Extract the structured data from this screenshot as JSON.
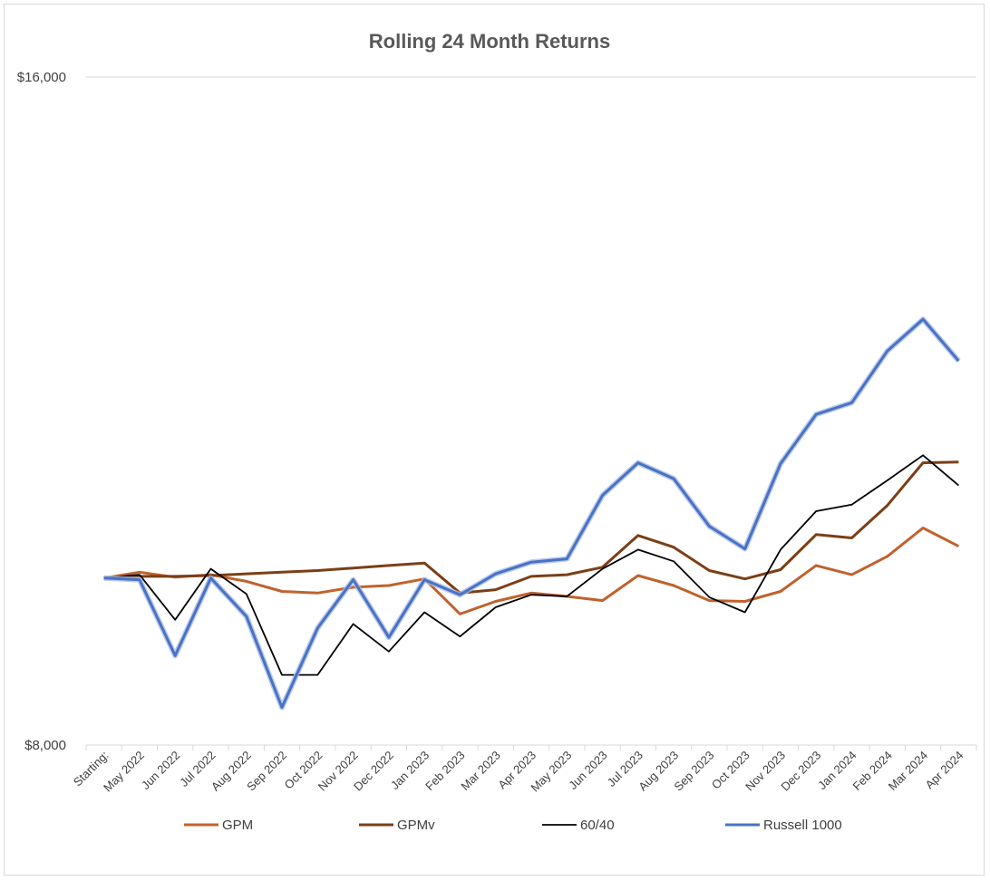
{
  "chart_data": {
    "type": "line",
    "title": "Rolling 24 Month Returns",
    "xlabel": "",
    "ylabel": "",
    "ylim": [
      8000,
      16000
    ],
    "yticks": [
      "$16,000",
      "$8,000"
    ],
    "ytick_values": [
      16000,
      8000
    ],
    "grid": "horizontal",
    "legend_position": "bottom",
    "categories": [
      "Starting:",
      "May 2022",
      "Jun 2022",
      "Jul 2022",
      "Aug 2022",
      "Sep 2022",
      "Oct 2022",
      "Nov 2022",
      "Dec 2022",
      "Jan 2023",
      "Feb 2023",
      "Mar 2023",
      "Apr 2023",
      "May 2023",
      "Jun 2023",
      "Jul 2023",
      "Aug 2023",
      "Sep 2023",
      "Oct 2023",
      "Nov 2023",
      "Dec 2023",
      "Jan 2024",
      "Feb 2024",
      "Mar 2024",
      "Apr 2024"
    ],
    "series": [
      {
        "name": "GPM",
        "color": "#c0622d",
        "width": 3,
        "values": [
          10000,
          10070,
          10010,
          10040,
          9960,
          9840,
          9820,
          9890,
          9910,
          9990,
          9570,
          9720,
          9820,
          9780,
          9730,
          10030,
          9910,
          9730,
          9720,
          9840,
          10150,
          10040,
          10260,
          10600,
          10380
        ]
      },
      {
        "name": "GPMv",
        "color": "#7b3f17",
        "width": 3,
        "values": [
          10000,
          10020,
          10020,
          10030,
          10050,
          10070,
          10090,
          10120,
          10150,
          10180,
          9820,
          9860,
          10020,
          10040,
          10130,
          10510,
          10370,
          10090,
          9990,
          10100,
          10520,
          10480,
          10870,
          11380,
          11390
        ]
      },
      {
        "name": "60/40",
        "color": "#000000",
        "width": 1.8,
        "values": [
          10000,
          10040,
          9500,
          10110,
          9810,
          8840,
          8840,
          9450,
          9120,
          9590,
          9300,
          9650,
          9800,
          9780,
          10110,
          10340,
          10200,
          9770,
          9590,
          10340,
          10800,
          10880,
          11170,
          11470,
          11110
        ]
      },
      {
        "name": "Russell 1000",
        "color": "#4a72c4",
        "width": 3,
        "values": [
          10000,
          9980,
          9070,
          10000,
          9540,
          8450,
          9400,
          9980,
          9290,
          9980,
          9800,
          10050,
          10190,
          10230,
          10990,
          11380,
          11190,
          10620,
          10350,
          11370,
          11960,
          12100,
          12720,
          13100,
          12600
        ]
      }
    ]
  }
}
